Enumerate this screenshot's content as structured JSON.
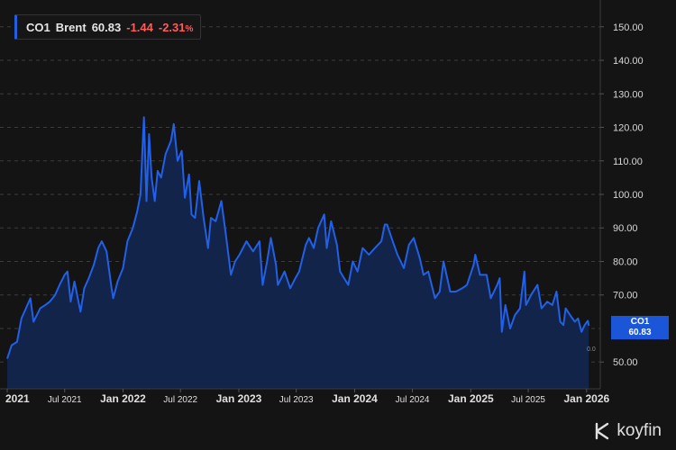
{
  "legend": {
    "symbol": "CO1",
    "name": "Brent",
    "last": "60.83",
    "change": "-1.44",
    "change_pct": "-2.31",
    "pct_sign": "%"
  },
  "last_tag": {
    "symbol": "CO1",
    "value": "60.83"
  },
  "small_label": "0.0",
  "brand": {
    "name": "koyfin"
  },
  "colors": {
    "line": "#2160e8",
    "area": "#13244a",
    "background": "#141414",
    "negative": "#ff5c5c"
  },
  "chart_data": {
    "type": "area",
    "y_axis_side": "right",
    "ylim": [
      42,
      158
    ],
    "yticks": [
      50,
      60,
      70,
      80,
      90,
      100,
      110,
      120,
      130,
      140,
      150
    ],
    "ytick_labels": [
      "50.00",
      "",
      "70.00",
      "80.00",
      "90.00",
      "100.00",
      "110.00",
      "120.00",
      "130.00",
      "140.00",
      "150.00"
    ],
    "xlim": [
      "2021-01-01",
      "2026-01-10"
    ],
    "xticks": [
      {
        "date": "2021-01-01",
        "label": "2021",
        "bold": true
      },
      {
        "date": "2021-07-01",
        "label": "Jul 2021",
        "bold": false
      },
      {
        "date": "2022-01-01",
        "label": "Jan 2022",
        "bold": true
      },
      {
        "date": "2022-07-01",
        "label": "Jul 2022",
        "bold": false
      },
      {
        "date": "2023-01-01",
        "label": "Jan 2023",
        "bold": true
      },
      {
        "date": "2023-07-01",
        "label": "Jul 2023",
        "bold": false
      },
      {
        "date": "2024-01-01",
        "label": "Jan 2024",
        "bold": true
      },
      {
        "date": "2024-07-01",
        "label": "Jul 2024",
        "bold": false
      },
      {
        "date": "2025-01-01",
        "label": "Jan 2025",
        "bold": true
      },
      {
        "date": "2025-07-01",
        "label": "Jul 2025",
        "bold": false
      },
      {
        "date": "2026-01-01",
        "label": "Jan 2026",
        "bold": true
      }
    ],
    "grid": "horizontal-dashed",
    "series": [
      {
        "name": "CO1 Brent",
        "points": [
          [
            "2021-01-01",
            51
          ],
          [
            "2021-01-15",
            55
          ],
          [
            "2021-02-01",
            56
          ],
          [
            "2021-02-15",
            63
          ],
          [
            "2021-03-01",
            66
          ],
          [
            "2021-03-15",
            69
          ],
          [
            "2021-03-25",
            62
          ],
          [
            "2021-04-15",
            66
          ],
          [
            "2021-05-01",
            67
          ],
          [
            "2021-05-15",
            68
          ],
          [
            "2021-06-01",
            70
          ],
          [
            "2021-06-15",
            73
          ],
          [
            "2021-07-01",
            76
          ],
          [
            "2021-07-10",
            77
          ],
          [
            "2021-07-20",
            68
          ],
          [
            "2021-08-01",
            74
          ],
          [
            "2021-08-20",
            65
          ],
          [
            "2021-09-01",
            72
          ],
          [
            "2021-09-15",
            75
          ],
          [
            "2021-10-01",
            79
          ],
          [
            "2021-10-15",
            84
          ],
          [
            "2021-10-26",
            86
          ],
          [
            "2021-11-10",
            83
          ],
          [
            "2021-11-26",
            72
          ],
          [
            "2021-12-01",
            69
          ],
          [
            "2021-12-15",
            74
          ],
          [
            "2022-01-01",
            78
          ],
          [
            "2022-01-15",
            86
          ],
          [
            "2022-02-01",
            90
          ],
          [
            "2022-02-15",
            95
          ],
          [
            "2022-02-25",
            100
          ],
          [
            "2022-03-03",
            113
          ],
          [
            "2022-03-08",
            123
          ],
          [
            "2022-03-16",
            98
          ],
          [
            "2022-03-24",
            118
          ],
          [
            "2022-04-01",
            105
          ],
          [
            "2022-04-11",
            98
          ],
          [
            "2022-04-20",
            107
          ],
          [
            "2022-05-01",
            105
          ],
          [
            "2022-05-15",
            112
          ],
          [
            "2022-06-01",
            116
          ],
          [
            "2022-06-10",
            121
          ],
          [
            "2022-06-22",
            110
          ],
          [
            "2022-07-05",
            113
          ],
          [
            "2022-07-15",
            99
          ],
          [
            "2022-07-28",
            106
          ],
          [
            "2022-08-05",
            94
          ],
          [
            "2022-08-16",
            93
          ],
          [
            "2022-08-29",
            104
          ],
          [
            "2022-09-12",
            93
          ],
          [
            "2022-09-26",
            84
          ],
          [
            "2022-10-05",
            93
          ],
          [
            "2022-10-20",
            92
          ],
          [
            "2022-11-07",
            98
          ],
          [
            "2022-11-21",
            88
          ],
          [
            "2022-12-07",
            76
          ],
          [
            "2022-12-20",
            80
          ],
          [
            "2023-01-03",
            82
          ],
          [
            "2023-01-25",
            86
          ],
          [
            "2023-02-15",
            83
          ],
          [
            "2023-03-07",
            86
          ],
          [
            "2023-03-17",
            73
          ],
          [
            "2023-03-31",
            80
          ],
          [
            "2023-04-12",
            87
          ],
          [
            "2023-04-28",
            79
          ],
          [
            "2023-05-04",
            73
          ],
          [
            "2023-05-25",
            77
          ],
          [
            "2023-06-12",
            72
          ],
          [
            "2023-06-28",
            75
          ],
          [
            "2023-07-10",
            77
          ],
          [
            "2023-07-31",
            85
          ],
          [
            "2023-08-10",
            87
          ],
          [
            "2023-08-25",
            84
          ],
          [
            "2023-09-08",
            90
          ],
          [
            "2023-09-27",
            94
          ],
          [
            "2023-10-05",
            84
          ],
          [
            "2023-10-19",
            92
          ],
          [
            "2023-11-06",
            85
          ],
          [
            "2023-11-16",
            77
          ],
          [
            "2023-12-12",
            73
          ],
          [
            "2023-12-26",
            80
          ],
          [
            "2024-01-10",
            77
          ],
          [
            "2024-01-26",
            84
          ],
          [
            "2024-02-15",
            82
          ],
          [
            "2024-03-05",
            84
          ],
          [
            "2024-03-25",
            86
          ],
          [
            "2024-04-05",
            91
          ],
          [
            "2024-04-12",
            91
          ],
          [
            "2024-04-30",
            86
          ],
          [
            "2024-05-15",
            82
          ],
          [
            "2024-06-04",
            78
          ],
          [
            "2024-06-20",
            85
          ],
          [
            "2024-07-05",
            87
          ],
          [
            "2024-07-24",
            81
          ],
          [
            "2024-08-05",
            76
          ],
          [
            "2024-08-20",
            77
          ],
          [
            "2024-09-10",
            69
          ],
          [
            "2024-09-25",
            71
          ],
          [
            "2024-10-07",
            80
          ],
          [
            "2024-10-28",
            71
          ],
          [
            "2024-11-15",
            71
          ],
          [
            "2024-12-05",
            72
          ],
          [
            "2024-12-20",
            73
          ],
          [
            "2025-01-10",
            79
          ],
          [
            "2025-01-15",
            82
          ],
          [
            "2025-01-30",
            76
          ],
          [
            "2025-02-20",
            76
          ],
          [
            "2025-03-05",
            69
          ],
          [
            "2025-03-25",
            73
          ],
          [
            "2025-04-02",
            75
          ],
          [
            "2025-04-09",
            59
          ],
          [
            "2025-04-20",
            67
          ],
          [
            "2025-05-05",
            60
          ],
          [
            "2025-05-20",
            64
          ],
          [
            "2025-06-05",
            66
          ],
          [
            "2025-06-19",
            77
          ],
          [
            "2025-06-24",
            67
          ],
          [
            "2025-07-10",
            70
          ],
          [
            "2025-07-30",
            73
          ],
          [
            "2025-08-12",
            66
          ],
          [
            "2025-08-30",
            68
          ],
          [
            "2025-09-15",
            67
          ],
          [
            "2025-09-28",
            71
          ],
          [
            "2025-10-10",
            62
          ],
          [
            "2025-10-20",
            61
          ],
          [
            "2025-10-27",
            66
          ],
          [
            "2025-11-10",
            64
          ],
          [
            "2025-11-25",
            62
          ],
          [
            "2025-12-05",
            63
          ],
          [
            "2025-12-16",
            59
          ],
          [
            "2025-12-26",
            61
          ],
          [
            "2026-01-05",
            62.3
          ],
          [
            "2026-01-08",
            60.83
          ]
        ]
      }
    ]
  }
}
